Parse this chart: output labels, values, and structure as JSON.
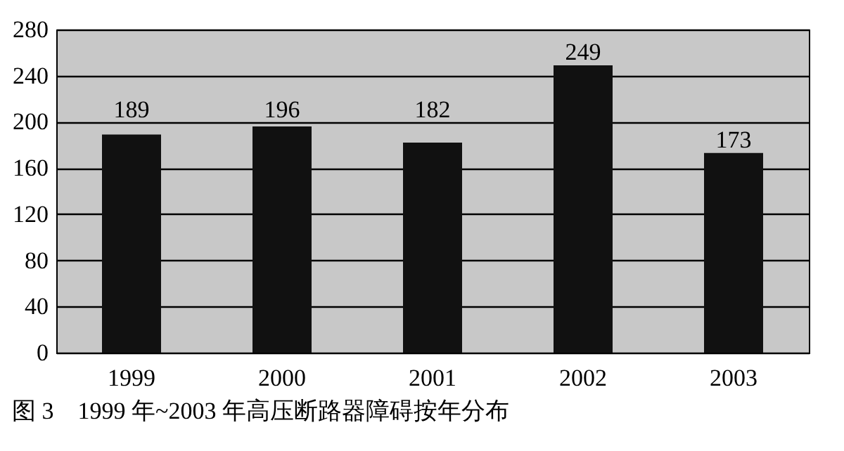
{
  "chart_data": {
    "type": "bar",
    "title": "图 3　1999 年~2003 年高压断路器障碍按年分布",
    "categories": [
      "1999",
      "2000",
      "2001",
      "2002",
      "2003"
    ],
    "values": [
      189,
      196,
      182,
      249,
      173
    ],
    "color": "#111111",
    "ylim": [
      0,
      280
    ],
    "yticks": [
      0,
      40,
      80,
      120,
      160,
      200,
      240,
      280
    ],
    "grid": "y",
    "data_labels": true
  }
}
